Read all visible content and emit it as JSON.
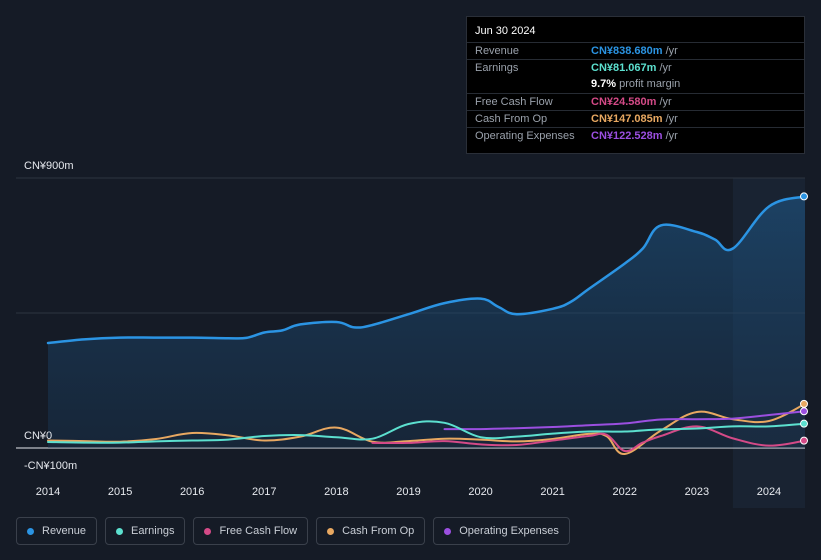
{
  "chart_data": {
    "type": "line",
    "y_axis": {
      "top_label": "CN¥900m",
      "zero_label": "CN¥0",
      "bottom_label": "-CN¥100m",
      "ylim": [
        -100,
        900
      ]
    },
    "x_axis": {
      "ticks": [
        "2014",
        "2015",
        "2016",
        "2017",
        "2018",
        "2019",
        "2020",
        "2021",
        "2022",
        "2023",
        "2024"
      ],
      "xlim": [
        2014.0,
        2024.5
      ]
    },
    "forecast_shading_start": 2023.5,
    "series": [
      {
        "name": "Revenue",
        "color": "#2b94e3",
        "filled": true,
        "x": [
          2014.0,
          2014.5,
          2015.0,
          2015.5,
          2016.0,
          2016.5,
          2016.75,
          2017.0,
          2017.25,
          2017.5,
          2018.0,
          2018.25,
          2018.5,
          2019.0,
          2019.5,
          2020.0,
          2020.25,
          2020.5,
          2021.0,
          2021.25,
          2021.5,
          2022.0,
          2022.25,
          2022.5,
          2023.0,
          2023.25,
          2023.5,
          2024.0,
          2024.5
        ],
        "y": [
          350,
          362,
          368,
          368,
          368,
          366,
          367,
          385,
          392,
          412,
          420,
          402,
          410,
          446,
          483,
          498,
          470,
          446,
          464,
          487,
          530,
          615,
          665,
          742,
          720,
          695,
          665,
          805,
          838.68
        ]
      },
      {
        "name": "Earnings",
        "color": "#5ce0cf",
        "x": [
          2014.0,
          2014.5,
          2015.0,
          2015.5,
          2016.0,
          2016.5,
          2017.0,
          2017.5,
          2018.0,
          2018.5,
          2019.0,
          2019.5,
          2020.0,
          2020.5,
          2021.0,
          2021.5,
          2022.0,
          2022.5,
          2023.0,
          2023.5,
          2024.0,
          2024.5
        ],
        "y": [
          20,
          18,
          18,
          22,
          25,
          28,
          40,
          43,
          36,
          31,
          80,
          84,
          36,
          38,
          48,
          55,
          55,
          62,
          65,
          72,
          72,
          81.067
        ]
      },
      {
        "name": "Free Cash Flow",
        "color": "#d44a87",
        "x": [
          2018.5,
          2019.0,
          2019.5,
          2020.0,
          2020.5,
          2021.0,
          2021.5,
          2021.75,
          2022.0,
          2022.25,
          2022.5,
          2023.0,
          2023.5,
          2024.0,
          2024.5
        ],
        "y": [
          17,
          17,
          23,
          12,
          10,
          25,
          40,
          44,
          -10,
          18,
          40,
          72,
          32,
          8,
          24.58
        ]
      },
      {
        "name": "Cash From Op",
        "color": "#e8a861",
        "x": [
          2014.0,
          2014.5,
          2015.0,
          2015.5,
          2016.0,
          2016.5,
          2017.0,
          2017.5,
          2018.0,
          2018.5,
          2019.0,
          2019.5,
          2020.0,
          2020.5,
          2021.0,
          2021.5,
          2021.75,
          2022.0,
          2022.5,
          2023.0,
          2023.5,
          2024.0,
          2024.5
        ],
        "y": [
          25,
          23,
          21,
          30,
          50,
          42,
          25,
          38,
          68,
          21,
          23,
          31,
          28,
          22,
          30,
          47,
          39,
          -20,
          58,
          120,
          96,
          90,
          147.085
        ]
      },
      {
        "name": "Operating Expenses",
        "color": "#9b4fe0",
        "x": [
          2019.5,
          2020.0,
          2020.5,
          2021.0,
          2021.5,
          2022.0,
          2022.5,
          2023.0,
          2023.5,
          2024.0,
          2024.5
        ],
        "y": [
          63,
          63,
          66,
          70,
          76,
          82,
          95,
          96,
          98,
          110,
          122.528
        ]
      }
    ]
  },
  "tooltip": {
    "date": "Jun 30 2024",
    "rows": [
      {
        "label": "Revenue",
        "value": "CN¥838.680m",
        "unit": "/yr",
        "color": "#2b94e3"
      },
      {
        "label": "Earnings",
        "value": "CN¥81.067m",
        "unit": "/yr",
        "color": "#5ce0cf"
      },
      {
        "label": "",
        "value": "9.7%",
        "unit": "profit margin",
        "color": "#ffffff"
      },
      {
        "label": "Free Cash Flow",
        "value": "CN¥24.580m",
        "unit": "/yr",
        "color": "#d44a87"
      },
      {
        "label": "Cash From Op",
        "value": "CN¥147.085m",
        "unit": "/yr",
        "color": "#e8a861"
      },
      {
        "label": "Operating Expenses",
        "value": "CN¥122.528m",
        "unit": "/yr",
        "color": "#9b4fe0"
      }
    ]
  },
  "legend": [
    {
      "label": "Revenue",
      "color": "#2b94e3"
    },
    {
      "label": "Earnings",
      "color": "#5ce0cf"
    },
    {
      "label": "Free Cash Flow",
      "color": "#d44a87"
    },
    {
      "label": "Cash From Op",
      "color": "#e8a861"
    },
    {
      "label": "Operating Expenses",
      "color": "#9b4fe0"
    }
  ]
}
